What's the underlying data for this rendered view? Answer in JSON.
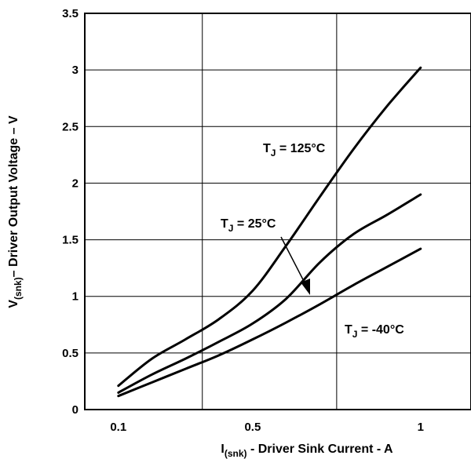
{
  "chart_data": {
    "type": "line",
    "title": "",
    "xlabel": {
      "main": "I",
      "sub": "(snk)",
      "rest": " - Driver Sink Current - A"
    },
    "ylabel": {
      "main": "V",
      "sub": "(snk)",
      "rest": "– Driver Output Voltage – V"
    },
    "xlim": [
      0,
      1.15
    ],
    "ylim": [
      0,
      3.5
    ],
    "x_ticks": [
      {
        "value": 0.1,
        "label": "0.1"
      },
      {
        "value": 0.5,
        "label": "0.5"
      },
      {
        "value": 1,
        "label": "1"
      }
    ],
    "x_grid": [
      0.35,
      0.75
    ],
    "y_ticks": [
      {
        "value": 0,
        "label": "0"
      },
      {
        "value": 0.5,
        "label": "0.5"
      },
      {
        "value": 1,
        "label": "1"
      },
      {
        "value": 1.5,
        "label": "1.5"
      },
      {
        "value": 2,
        "label": "2"
      },
      {
        "value": 2.5,
        "label": "2.5"
      },
      {
        "value": 3,
        "label": "3"
      },
      {
        "value": 3.5,
        "label": "3.5"
      }
    ],
    "grid": true,
    "series": [
      {
        "name": "T_J = 125°C",
        "label_main": "T",
        "label_sub": "J",
        "label_rest": " = 125°C",
        "points": [
          [
            0.1,
            0.21
          ],
          [
            0.2,
            0.45
          ],
          [
            0.3,
            0.62
          ],
          [
            0.4,
            0.8
          ],
          [
            0.5,
            1.05
          ],
          [
            0.6,
            1.45
          ],
          [
            0.7,
            1.88
          ],
          [
            0.8,
            2.3
          ],
          [
            0.9,
            2.68
          ],
          [
            1.0,
            3.02
          ]
        ]
      },
      {
        "name": "T_J = 25°C",
        "label_main": "T",
        "label_sub": "J",
        "label_rest": " = 25°C",
        "points": [
          [
            0.1,
            0.15
          ],
          [
            0.2,
            0.31
          ],
          [
            0.3,
            0.45
          ],
          [
            0.4,
            0.6
          ],
          [
            0.5,
            0.76
          ],
          [
            0.6,
            0.98
          ],
          [
            0.7,
            1.3
          ],
          [
            0.8,
            1.55
          ],
          [
            0.9,
            1.72
          ],
          [
            1.0,
            1.9
          ]
        ]
      },
      {
        "name": "T_J = -40°C",
        "label_main": "T",
        "label_sub": "J",
        "label_rest": " = -40°C",
        "points": [
          [
            0.1,
            0.12
          ],
          [
            0.2,
            0.24
          ],
          [
            0.3,
            0.36
          ],
          [
            0.4,
            0.48
          ],
          [
            0.5,
            0.62
          ],
          [
            0.6,
            0.77
          ],
          [
            0.7,
            0.93
          ],
          [
            0.8,
            1.1
          ],
          [
            0.9,
            1.26
          ],
          [
            1.0,
            1.42
          ]
        ]
      }
    ]
  }
}
